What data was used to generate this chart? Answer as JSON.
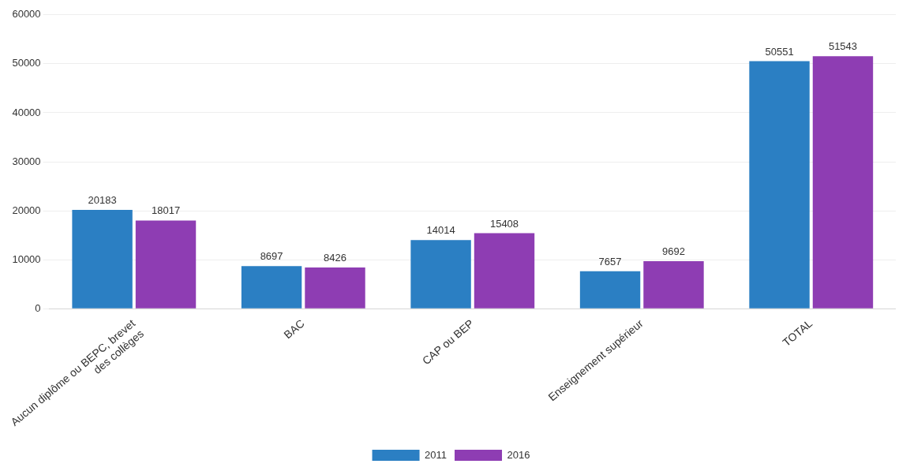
{
  "chart_data": {
    "type": "bar",
    "categories": [
      "Aucun diplôme ou BEPC, brevet des collèges",
      "BAC",
      "CAP ou BEP",
      "Enseignement supérieur",
      "TOTAL"
    ],
    "series": [
      {
        "name": "2011",
        "color": "#2b7fc3",
        "values": [
          20183,
          8697,
          14014,
          7657,
          50551
        ]
      },
      {
        "name": "2016",
        "color": "#8e3db3",
        "values": [
          18017,
          8426,
          15408,
          9692,
          51543
        ]
      }
    ],
    "ylim": [
      0,
      60000
    ],
    "yticks": [
      0,
      10000,
      20000,
      30000,
      40000,
      50000,
      60000
    ],
    "grid": "y",
    "legend": "bottom",
    "data_labels": true
  }
}
